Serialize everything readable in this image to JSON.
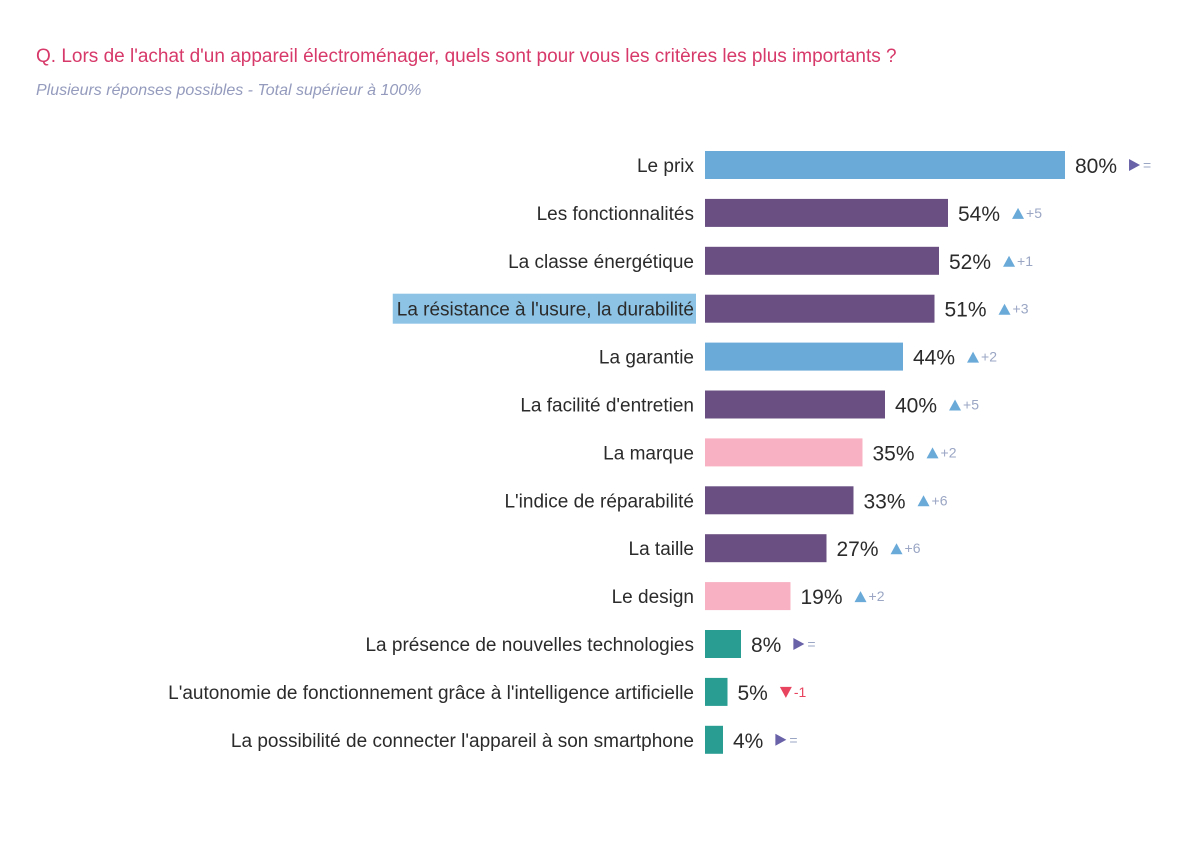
{
  "chart_data": {
    "type": "bar",
    "orientation": "horizontal",
    "title": "Q. Lors de l'achat d'un appareil électroménager, quels sont pour vous les critères les plus importants ?",
    "subtitle": "Plusieurs réponses possibles - Total supérieur à 100%",
    "grid": false,
    "xlim": [
      0,
      80
    ],
    "categories": [
      "Le prix",
      "Les fonctionnalités",
      "La classe énergétique",
      "La résistance à l'usure, la durabilité",
      "La garantie",
      "La facilité d'entretien",
      "La marque",
      "L'indice de réparabilité",
      "La taille",
      "Le design",
      "La présence de nouvelles technologies",
      "L'autonomie de fonctionnement grâce à l'intelligence artificielle",
      "La possibilité de connecter l'appareil à son smartphone"
    ],
    "values": [
      80,
      54,
      52,
      51,
      44,
      40,
      35,
      33,
      27,
      19,
      8,
      5,
      4
    ],
    "value_labels": [
      "80%",
      "54%",
      "52%",
      "51%",
      "44%",
      "40%",
      "35%",
      "33%",
      "27%",
      "19%",
      "8%",
      "5%",
      "4%"
    ],
    "changes": [
      "=",
      "+5",
      "+1",
      "+3",
      "+2",
      "+5",
      "+2",
      "+6",
      "+6",
      "+2",
      "=",
      "-1",
      "="
    ],
    "change_direction": [
      "flat",
      "up",
      "up",
      "up",
      "up",
      "up",
      "up",
      "up",
      "up",
      "up",
      "flat",
      "down",
      "flat"
    ],
    "bar_groups": [
      "blue",
      "purple",
      "purple",
      "purple",
      "blue",
      "purple",
      "pink",
      "purple",
      "purple",
      "pink",
      "teal",
      "teal",
      "teal"
    ],
    "highlighted_category": "La résistance à l'usure, la durabilité",
    "colors": {
      "blue": "#6aaad9",
      "purple": "#6a4f82",
      "pink": "#f8b1c2",
      "teal": "#2a9d92",
      "up": "#6aaad9",
      "down": "#e8445f",
      "flat": "#6a62a8",
      "highlight": "#8dc4e6",
      "title": "#d7396a",
      "subtitle": "#949bbd"
    }
  }
}
